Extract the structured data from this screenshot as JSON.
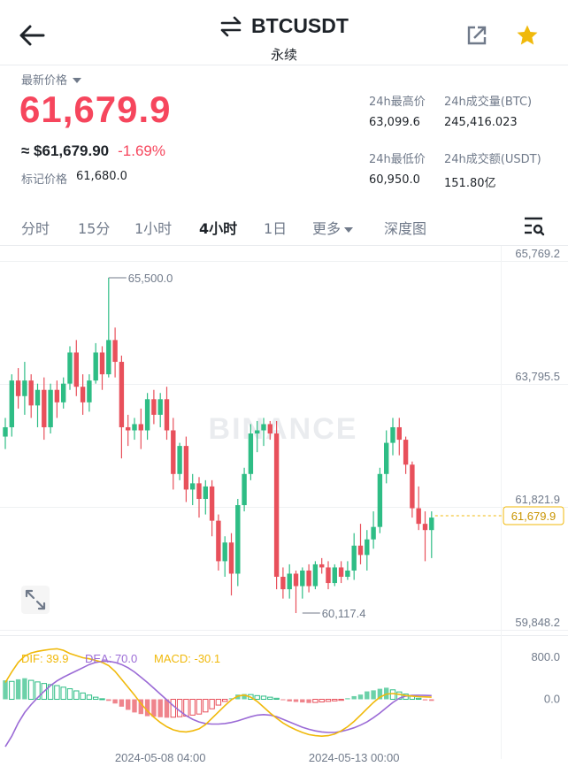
{
  "header": {
    "symbol": "BTCUSDT",
    "subtitle": "永续"
  },
  "ticker": {
    "latest_label": "最新价格",
    "last_price": "61,679.9",
    "usd_price": "≈ $61,679.90",
    "change_pct": "-1.69%",
    "mark_label": "标记价格",
    "mark_price": "61,680.0",
    "high_label": "24h最高价",
    "high": "63,099.6",
    "vol_btc_label": "24h成交量(BTC)",
    "vol_btc": "245,416.023",
    "low_label": "24h最低价",
    "low": "60,950.0",
    "vol_usdt_label": "24h成交额(USDT)",
    "vol_usdt": "151.80亿"
  },
  "intervals": [
    "分时",
    "15分",
    "1小时",
    "4小时",
    "1日",
    "更多",
    "深度图"
  ],
  "active_interval": "4小时",
  "colors": {
    "up": "#2ebd85",
    "down": "#e8505b",
    "accent": "#f0b90b",
    "dif": "#f0b90b",
    "dea": "#9b6bd6"
  },
  "icons": {
    "back": "back-arrow-icon",
    "swap": "swap-icon",
    "share": "share-icon",
    "favorite": "star-icon",
    "settings": "chart-settings-icon",
    "expand": "expand-icon"
  },
  "chart_data": {
    "type": "candlestick",
    "interval": "4h",
    "y_ticks": [
      "65,769.2",
      "63,795.5",
      "61,821.9",
      "59,848.2"
    ],
    "y_tick_values": [
      65769.2,
      63795.5,
      61821.9,
      59848.2
    ],
    "ylim": [
      59848.2,
      65769.2
    ],
    "x_ticks": [
      {
        "label": "2024-05-08 04:00",
        "index": 24
      },
      {
        "label": "2024-05-13 00:00",
        "index": 54
      }
    ],
    "high_annotation": {
      "label": "65,500.0",
      "value": 65500.0,
      "index": 16
    },
    "low_annotation": {
      "label": "60,117.4",
      "value": 60117.4,
      "index": 46
    },
    "current_price": {
      "label": "61,679.9",
      "value": 61679.9
    },
    "watermark": "BINANCE",
    "candles": [
      [
        62950,
        63250,
        62750,
        63100
      ],
      [
        63100,
        63950,
        62950,
        63850
      ],
      [
        63850,
        64050,
        63400,
        63600
      ],
      [
        63600,
        64150,
        63300,
        63850
      ],
      [
        63850,
        63950,
        63250,
        63450
      ],
      [
        63450,
        63800,
        63100,
        63700
      ],
      [
        63700,
        63900,
        62900,
        63100
      ],
      [
        63100,
        63800,
        63000,
        63700
      ],
      [
        63700,
        63850,
        63250,
        63500
      ],
      [
        63500,
        63900,
        63400,
        63800
      ],
      [
        63800,
        64400,
        63700,
        64300
      ],
      [
        64300,
        64500,
        63600,
        63750
      ],
      [
        63750,
        63950,
        63300,
        63500
      ],
      [
        63500,
        63950,
        63350,
        63850
      ],
      [
        63850,
        64450,
        63800,
        64300
      ],
      [
        64300,
        64400,
        63700,
        63950
      ],
      [
        63950,
        65500,
        63900,
        64500
      ],
      [
        64500,
        64700,
        63900,
        64150
      ],
      [
        64150,
        64250,
        62600,
        63100
      ],
      [
        63100,
        63300,
        62800,
        63050
      ],
      [
        63050,
        63250,
        62900,
        63150
      ],
      [
        63150,
        63400,
        62750,
        63050
      ],
      [
        63050,
        63650,
        62900,
        63550
      ],
      [
        63550,
        63700,
        63150,
        63300
      ],
      [
        63300,
        63650,
        63100,
        63550
      ],
      [
        63550,
        63750,
        62900,
        63050
      ],
      [
        63050,
        63250,
        62100,
        62350
      ],
      [
        62350,
        62850,
        62250,
        62800
      ],
      [
        62800,
        62950,
        61900,
        62100
      ],
      [
        62100,
        62350,
        61850,
        62200
      ],
      [
        62200,
        62300,
        61650,
        61950
      ],
      [
        61950,
        62250,
        61700,
        62150
      ],
      [
        62150,
        62250,
        61350,
        61600
      ],
      [
        61600,
        61700,
        60800,
        60950
      ],
      [
        60950,
        61350,
        60700,
        61250
      ],
      [
        61250,
        61400,
        60400,
        60750
      ],
      [
        60750,
        61950,
        60550,
        61850
      ],
      [
        61850,
        62450,
        61750,
        62350
      ],
      [
        62350,
        63150,
        62250,
        63000
      ],
      [
        63000,
        63200,
        62700,
        63050
      ],
      [
        63050,
        63250,
        62800,
        63150
      ],
      [
        63150,
        63200,
        62900,
        63000
      ],
      [
        63000,
        63200,
        60500,
        60700
      ],
      [
        60700,
        60850,
        60350,
        60500
      ],
      [
        60500,
        60900,
        60350,
        60750
      ],
      [
        60750,
        60800,
        60117.4,
        60550
      ],
      [
        60550,
        60850,
        60350,
        60800
      ],
      [
        60800,
        60900,
        60450,
        60550
      ],
      [
        60550,
        60950,
        60500,
        60900
      ],
      [
        60900,
        61000,
        60750,
        60850
      ],
      [
        60850,
        60950,
        60500,
        60600
      ],
      [
        60600,
        60900,
        60550,
        60850
      ],
      [
        60850,
        60950,
        60600,
        60700
      ],
      [
        60700,
        60950,
        60650,
        60800
      ],
      [
        60800,
        61400,
        60650,
        61200
      ],
      [
        61200,
        61550,
        60900,
        61050
      ],
      [
        61050,
        61450,
        60800,
        61300
      ],
      [
        61300,
        61750,
        61150,
        61500
      ],
      [
        61500,
        62450,
        61400,
        62350
      ],
      [
        62350,
        63050,
        62200,
        62850
      ],
      [
        62850,
        63250,
        62650,
        63100
      ],
      [
        63100,
        63250,
        62650,
        62900
      ],
      [
        62900,
        62950,
        62350,
        62500
      ],
      [
        62500,
        62550,
        61650,
        61800
      ],
      [
        61800,
        62150,
        61450,
        61550
      ],
      [
        61550,
        61750,
        60950,
        61450
      ],
      [
        61450,
        61750,
        61000,
        61650
      ]
    ],
    "indicator": {
      "name": "MACD",
      "dif_label": "DIF: 39.9",
      "dea_label": "DEA: 70.0",
      "macd_label": "MACD: -30.1",
      "y_ticks": [
        "800.0",
        "0.0"
      ],
      "y_tick_values": [
        800,
        0
      ],
      "ylim": [
        -1100,
        1050
      ],
      "dif": [
        320,
        520,
        700,
        820,
        880,
        910,
        930,
        950,
        960,
        930,
        870,
        830,
        790,
        770,
        740,
        700,
        640,
        530,
        380,
        230,
        80,
        -80,
        -220,
        -340,
        -440,
        -520,
        -580,
        -610,
        -620,
        -600,
        -560,
        -480,
        -360,
        -240,
        -120,
        -10,
        60,
        80,
        40,
        -40,
        -150,
        -260,
        -360,
        -450,
        -520,
        -580,
        -630,
        -670,
        -690,
        -700,
        -690,
        -660,
        -600,
        -520,
        -420,
        -300,
        -180,
        -60,
        40,
        100,
        110,
        95,
        70,
        60,
        50,
        45,
        40
      ],
      "dea": [
        -900,
        -700,
        -450,
        -250,
        -100,
        30,
        150,
        260,
        350,
        420,
        480,
        540,
        600,
        660,
        700,
        720,
        720,
        700,
        660,
        600,
        520,
        420,
        320,
        210,
        100,
        -10,
        -120,
        -220,
        -310,
        -380,
        -430,
        -460,
        -470,
        -470,
        -460,
        -440,
        -410,
        -370,
        -330,
        -300,
        -290,
        -300,
        -330,
        -380,
        -430,
        -480,
        -530,
        -570,
        -600,
        -620,
        -630,
        -630,
        -610,
        -580,
        -540,
        -490,
        -430,
        -350,
        -260,
        -160,
        -60,
        20,
        60,
        75,
        78,
        74,
        70
      ],
      "macd": [
        360,
        340,
        380,
        400,
        360,
        330,
        300,
        280,
        260,
        230,
        200,
        160,
        120,
        80,
        40,
        10,
        -30,
        -80,
        -140,
        -200,
        -250,
        -280,
        -320,
        -330,
        -340,
        -350,
        -340,
        -330,
        -320,
        -300,
        -280,
        -240,
        -180,
        -110,
        -40,
        20,
        90,
        100,
        90,
        70,
        60,
        40,
        20,
        -10,
        -40,
        -50,
        -60,
        -70,
        -60,
        -50,
        -40,
        -30,
        -20,
        20,
        60,
        90,
        150,
        170,
        200,
        220,
        180,
        140,
        100,
        60,
        20,
        -20,
        -30
      ]
    }
  }
}
